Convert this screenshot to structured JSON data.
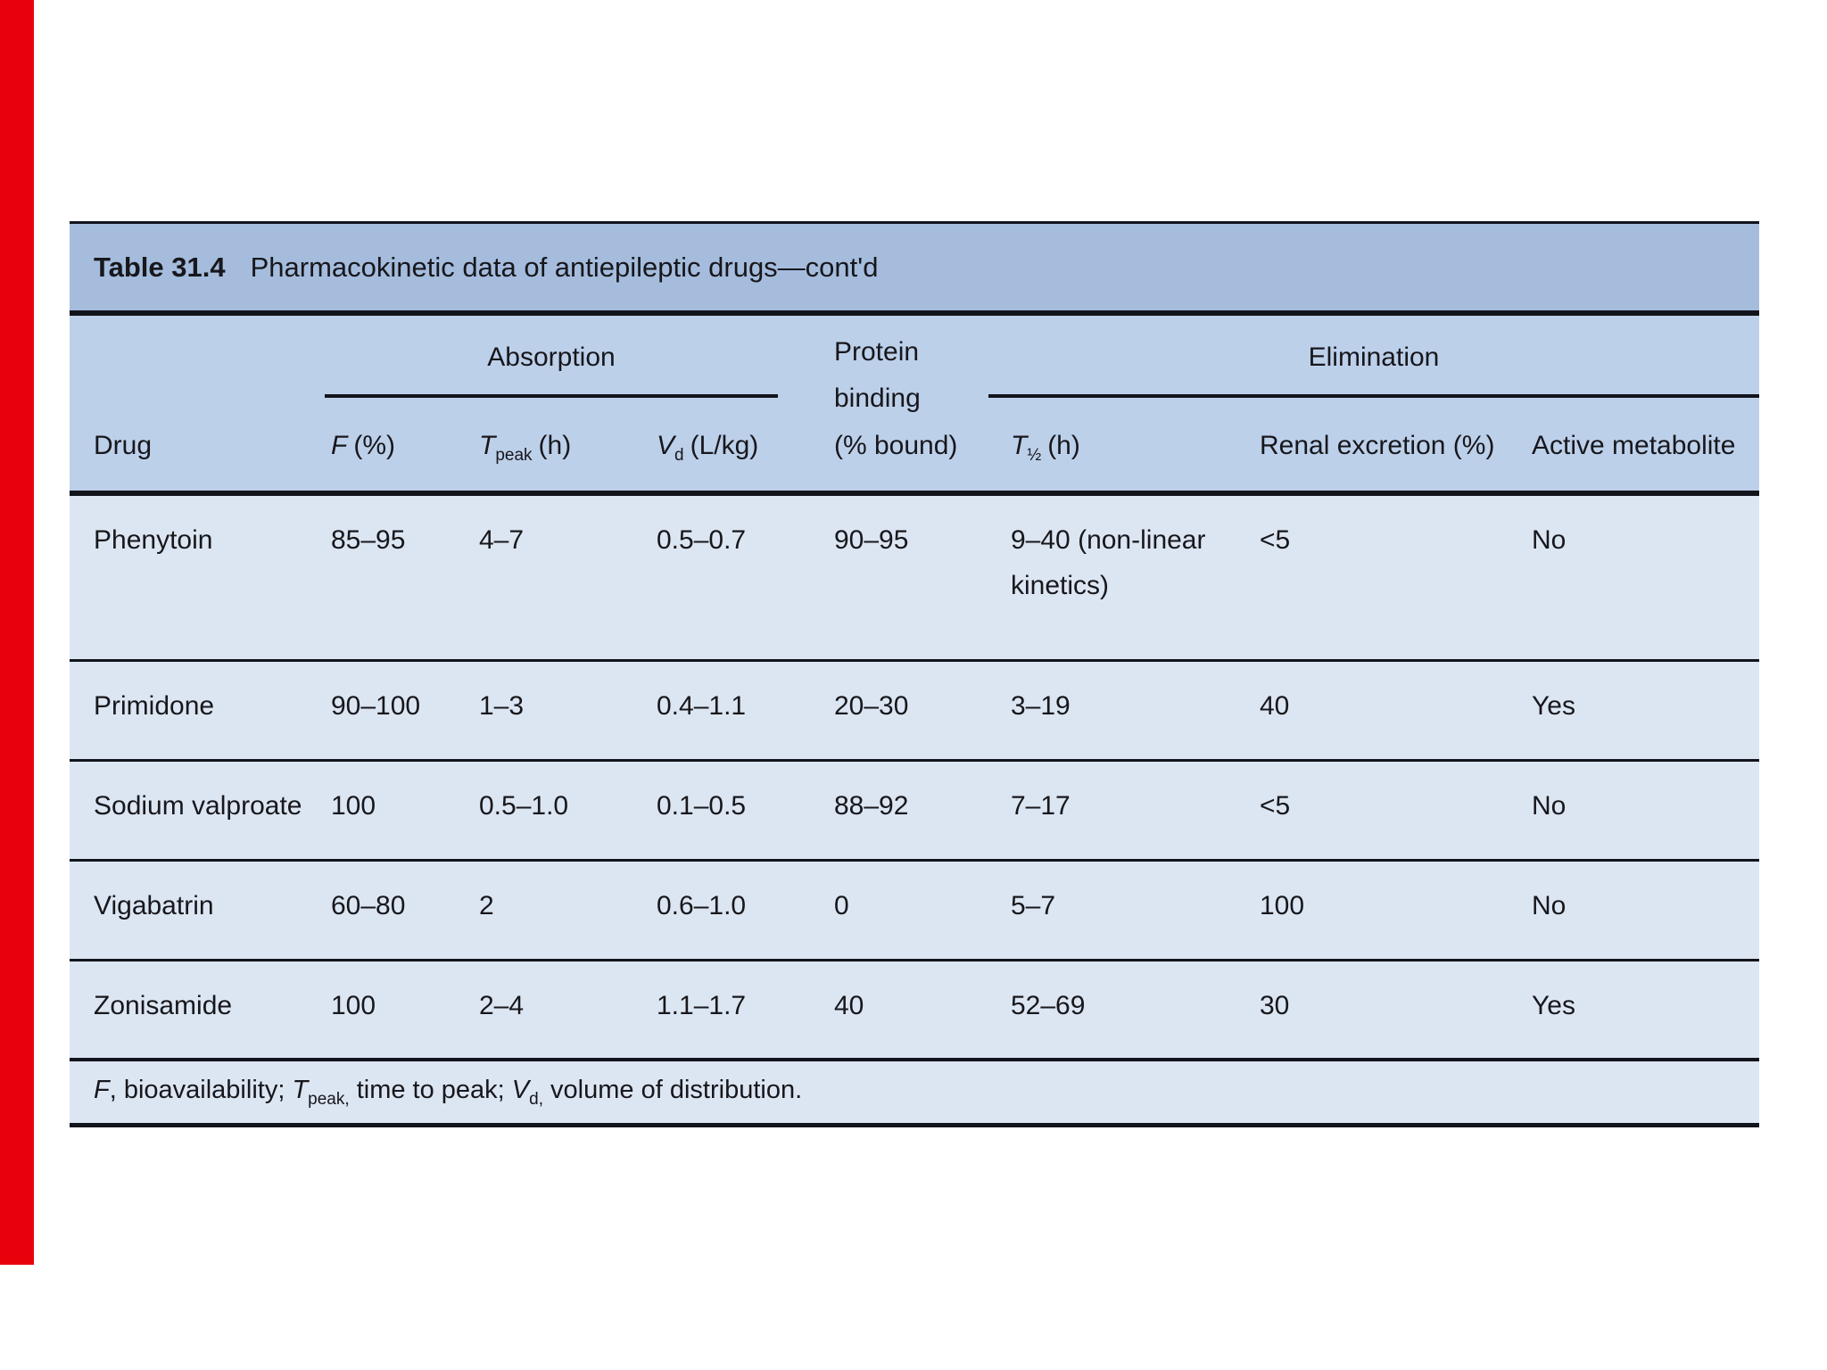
{
  "colors": {
    "red-bar": "#e8000d",
    "title-bg": "#a5bcdd",
    "header-bg": "#bdd0ea",
    "row-bg": "#dce6f2",
    "line": "#12141c",
    "text": "#17171c"
  },
  "table": {
    "title": {
      "label": "Table 31.4",
      "text": "Pharmacokinetic data of antiepileptic drugs—cont'd"
    },
    "groups": {
      "absorption": "Absorption",
      "elimination": "Elimination"
    },
    "columns": {
      "drug": {
        "label": "Drug"
      },
      "f": {
        "symbol": "F",
        "unit": "(%)"
      },
      "tpeak": {
        "symbol": "T",
        "sub": "peak",
        "unit": "(h)"
      },
      "vd": {
        "symbol": "V",
        "sub": "d",
        "unit": "(L/kg)"
      },
      "protein": {
        "line1": "Protein",
        "line2": "binding",
        "line3": "(% bound)"
      },
      "thalf": {
        "symbol": "T",
        "sub": "½",
        "unit": "(h)"
      },
      "renal": {
        "label": "Renal excretion (%)"
      },
      "active": {
        "label": "Active metabolite"
      }
    },
    "rows": [
      {
        "drug": "Phenytoin",
        "f": "85–95",
        "tpeak": "4–7",
        "vd": "0.5–0.7",
        "protein": "90–95",
        "thalf": "9–40 (non-linear kinetics)",
        "renal": "<5",
        "active": "No"
      },
      {
        "drug": "Primidone",
        "f": "90–100",
        "tpeak": "1–3",
        "vd": "0.4–1.1",
        "protein": "20–30",
        "thalf": "3–19",
        "renal": "40",
        "active": "Yes"
      },
      {
        "drug": "Sodium valproate",
        "f": "100",
        "tpeak": "0.5–1.0",
        "vd": "0.1–0.5",
        "protein": "88–92",
        "thalf": "7–17",
        "renal": "<5",
        "active": "No"
      },
      {
        "drug": "Vigabatrin",
        "f": "60–80",
        "tpeak": "2",
        "vd": "0.6–1.0",
        "protein": "0",
        "thalf": "5–7",
        "renal": "100",
        "active": "No"
      },
      {
        "drug": "Zonisamide",
        "f": "100",
        "tpeak": "2–4",
        "vd": "1.1–1.7",
        "protein": "40",
        "thalf": "52–69",
        "renal": "30",
        "active": "Yes"
      }
    ],
    "footnote": {
      "f_sym": "F",
      "f_text": ", bioavailability; ",
      "t_sym": "T",
      "t_sub": "peak,",
      "t_text": " time to peak; ",
      "v_sym": "V",
      "v_sub": "d,",
      "v_text": " volume of distribution."
    }
  }
}
